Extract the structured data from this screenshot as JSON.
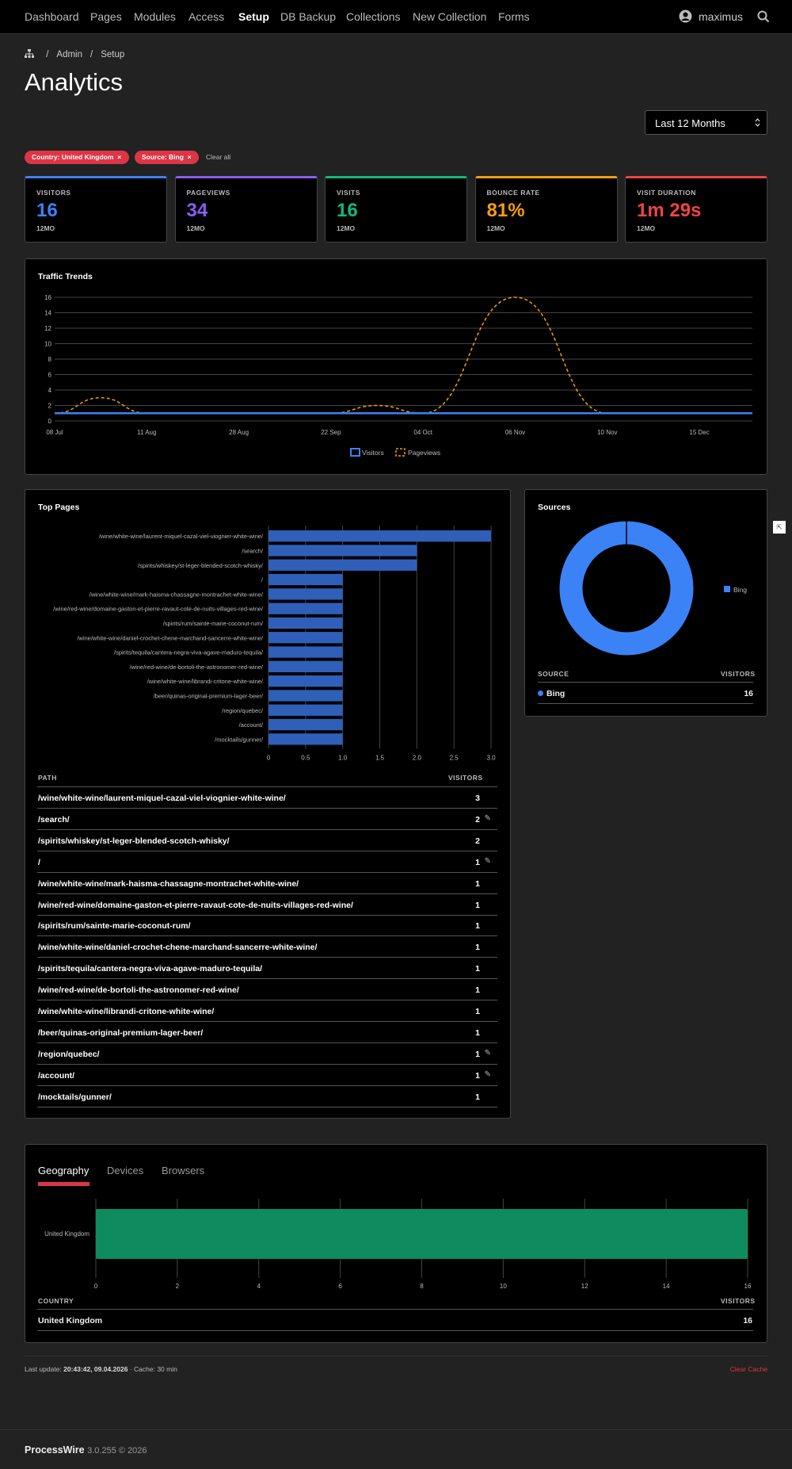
{
  "nav": {
    "items": [
      "Dashboard",
      "Pages",
      "Modules",
      "Access",
      "Setup",
      "DB Backup",
      "Collections",
      "New Collection",
      "Forms"
    ],
    "user": "maximus"
  },
  "breadcrumb": [
    "Admin",
    "Setup"
  ],
  "page_title": "Analytics",
  "period_select": "Last 12 Months",
  "filters": {
    "country": "Country: United Kingdom",
    "source": "Source: Bing",
    "clear": "Clear all"
  },
  "stats": [
    {
      "label": "VISITORS",
      "value": "16",
      "sub": "12MO",
      "color": "#3b82f6"
    },
    {
      "label": "PAGEVIEWS",
      "value": "34",
      "sub": "12MO",
      "color": "#8b5cf6"
    },
    {
      "label": "VISITS",
      "value": "16",
      "sub": "12MO",
      "color": "#10b981"
    },
    {
      "label": "BOUNCE RATE",
      "value": "81%",
      "sub": "12MO",
      "color": "#f59e0b"
    },
    {
      "label": "VISIT DURATION",
      "value": "1m 29s",
      "sub": "12MO",
      "color": "#ef4444"
    }
  ],
  "traffic": {
    "title": "Traffic Trends",
    "legend": [
      "Visitors",
      "Pageviews"
    ]
  },
  "top_pages": {
    "title": "Top Pages",
    "col_path": "PATH",
    "col_visitors": "VISITORS",
    "rows": [
      {
        "path": "/wine/white-wine/laurent-miquel-cazal-viel-viognier-white-wine/",
        "visitors": "3",
        "edit": false
      },
      {
        "path": "/search/",
        "visitors": "2",
        "edit": true
      },
      {
        "path": "/spirits/whiskey/st-leger-blended-scotch-whisky/",
        "visitors": "2",
        "edit": false
      },
      {
        "path": "/",
        "visitors": "1",
        "edit": true
      },
      {
        "path": "/wine/white-wine/mark-haisma-chassagne-montrachet-white-wine/",
        "visitors": "1",
        "edit": false
      },
      {
        "path": "/wine/red-wine/domaine-gaston-et-pierre-ravaut-cote-de-nuits-villages-red-wine/",
        "visitors": "1",
        "edit": false
      },
      {
        "path": "/spirits/rum/sainte-marie-coconut-rum/",
        "visitors": "1",
        "edit": false
      },
      {
        "path": "/wine/white-wine/daniel-crochet-chene-marchand-sancerre-white-wine/",
        "visitors": "1",
        "edit": false
      },
      {
        "path": "/spirits/tequila/cantera-negra-viva-agave-maduro-tequila/",
        "visitors": "1",
        "edit": false
      },
      {
        "path": "/wine/red-wine/de-bortoli-the-astronomer-red-wine/",
        "visitors": "1",
        "edit": false
      },
      {
        "path": "/wine/white-wine/librandi-critone-white-wine/",
        "visitors": "1",
        "edit": false
      },
      {
        "path": "/beer/quinas-original-premium-lager-beer/",
        "visitors": "1",
        "edit": false
      },
      {
        "path": "/region/quebec/",
        "visitors": "1",
        "edit": true
      },
      {
        "path": "/account/",
        "visitors": "1",
        "edit": true
      },
      {
        "path": "/mocktails/gunner/",
        "visitors": "1",
        "edit": false
      }
    ]
  },
  "sources": {
    "title": "Sources",
    "col_source": "SOURCE",
    "col_visitors": "VISITORS",
    "rows": [
      {
        "name": "Bing",
        "visitors": "16"
      }
    ]
  },
  "geo": {
    "tabs": [
      "Geography",
      "Devices",
      "Browsers"
    ],
    "col_country": "COUNTRY",
    "col_visitors": "VISITORS",
    "rows": [
      {
        "name": "United Kingdom",
        "visitors": "16"
      }
    ]
  },
  "footer": {
    "last_update_label": "Last update:",
    "last_update": "20:43:42, 09.04.2026",
    "cache": "Cache: 30 min",
    "clear_cache": "Clear Cache",
    "brand": "ProcessWire",
    "version": "3.0.255 © 2026"
  },
  "chart_data": [
    {
      "type": "line",
      "title": "Traffic Trends",
      "x_ticks": [
        "08 Jul",
        "11 Aug",
        "28 Aug",
        "22 Sep",
        "04 Oct",
        "06 Nov",
        "10 Nov",
        "15 Dec"
      ],
      "ylim": [
        0,
        16
      ],
      "y_ticks": [
        0,
        2,
        4,
        6,
        8,
        10,
        12,
        14,
        16
      ],
      "legend_position": "bottom",
      "grid": true,
      "series": [
        {
          "name": "Visitors",
          "color": "#3b82f6",
          "style": "solid",
          "x": [
            "08 Jul",
            "11 Aug",
            "28 Aug",
            "22 Sep",
            "04 Oct",
            "06 Nov",
            "10 Nov",
            "15 Dec"
          ],
          "values": [
            1,
            1,
            1,
            1,
            1,
            1,
            1,
            1
          ]
        },
        {
          "name": "Pageviews",
          "color": "#f59e0b",
          "style": "dashed",
          "x": [
            "08 Jul",
            "20 Jul",
            "11 Aug",
            "28 Aug",
            "22 Sep",
            "28 Sep",
            "04 Oct",
            "06 Nov",
            "10 Nov",
            "15 Dec"
          ],
          "values": [
            1,
            3,
            1,
            1,
            1,
            2,
            1,
            16,
            1,
            1
          ]
        }
      ]
    },
    {
      "type": "bar",
      "orientation": "horizontal",
      "title": "Top Pages",
      "xlim": [
        0,
        3
      ],
      "x_ticks": [
        "0",
        "0.5",
        "1.0",
        "1.5",
        "2.0",
        "2.5",
        "3.0"
      ],
      "color": "#2f5fb8",
      "categories": [
        "/wine/white-wine/laurent-miquel-cazal-viel-viognier-white-wine/",
        "/search/",
        "/spirits/whiskey/st-leger-blended-scotch-whisky/",
        "/",
        "/wine/white-wine/mark-haisma-chassagne-montrachet-white-wine/",
        "/wine/red-wine/domaine-gaston-et-pierre-ravaut-cote-de-nuits-villages-red-wine/",
        "/spirits/rum/sainte-marie-coconut-rum/",
        "/wine/white-wine/daniel-crochet-chene-marchand-sancerre-white-wine/",
        "/spirits/tequila/cantera-negra-viva-agave-maduro-tequila/",
        "/wine/red-wine/de-bortoli-the-astronomer-red-wine/",
        "/wine/white-wine/librandi-critone-white-wine/",
        "/beer/quinas-original-premium-lager-beer/",
        "/region/quebec/",
        "/account/",
        "/mocktails/gunner/"
      ],
      "values": [
        3,
        2,
        2,
        1,
        1,
        1,
        1,
        1,
        1,
        1,
        1,
        1,
        1,
        1,
        1
      ]
    },
    {
      "type": "pie",
      "donut": true,
      "title": "Sources",
      "legend_position": "right",
      "categories": [
        "Bing"
      ],
      "values": [
        16
      ],
      "colors": [
        "#3b82f6"
      ]
    },
    {
      "type": "bar",
      "orientation": "horizontal",
      "xlim": [
        0,
        16
      ],
      "x_ticks": [
        "0",
        "2",
        "4",
        "6",
        "8",
        "10",
        "12",
        "14",
        "16"
      ],
      "color": "#0e8c5f",
      "categories": [
        "United Kingdom"
      ],
      "values": [
        16
      ]
    }
  ]
}
